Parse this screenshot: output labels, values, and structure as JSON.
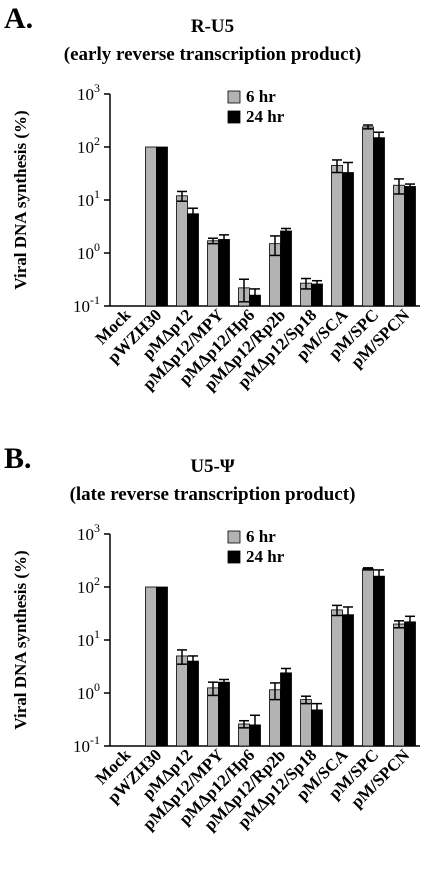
{
  "chart_data": [
    {
      "type": "bar",
      "panel_label": "A.",
      "title": "R-U5",
      "subtitle": "(early reverse transcription product)",
      "ylabel": "Viral DNA synthesis (%)",
      "xlabel": "",
      "y_scale": "log",
      "ylim": [
        0.1,
        1000
      ],
      "y_ticks": [
        {
          "base": "10",
          "exp": "3",
          "value": 1000
        },
        {
          "base": "10",
          "exp": "2",
          "value": 100
        },
        {
          "base": "10",
          "exp": "1",
          "value": 10
        },
        {
          "base": "10",
          "exp": "0",
          "value": 1
        },
        {
          "base": "10",
          "exp": "-1",
          "value": 0.1
        }
      ],
      "grid": false,
      "legend_position": "top-center",
      "categories": [
        "Mock",
        "pWZH30",
        "pMΔp12",
        "pMΔp12/MPY",
        "pMΔp12/Hp6",
        "pMΔp12/Rp2b",
        "pMΔp12/Sp18",
        "pM/SCA",
        "pM/SPC",
        "pM/SPCN"
      ],
      "series": [
        {
          "name": "6 hr",
          "color": "#b3b3b3",
          "values": [
            null,
            100,
            12,
            1.7,
            0.22,
            1.5,
            0.27,
            45,
            240,
            19
          ],
          "errors": [
            null,
            0,
            2.5,
            0.2,
            0.1,
            0.6,
            0.06,
            12,
            20,
            6
          ]
        },
        {
          "name": "24 hr",
          "color": "#000000",
          "values": [
            null,
            100,
            5.5,
            1.8,
            0.16,
            2.6,
            0.26,
            33,
            150,
            18
          ],
          "errors": [
            null,
            0,
            1.5,
            0.4,
            0.05,
            0.3,
            0.04,
            18,
            40,
            2
          ]
        }
      ]
    },
    {
      "type": "bar",
      "panel_label": "B.",
      "title": "U5-Ψ",
      "subtitle": "(late reverse transcription product)",
      "ylabel": "Viral DNA synthesis (%)",
      "xlabel": "",
      "y_scale": "log",
      "ylim": [
        0.1,
        1000
      ],
      "y_ticks": [
        {
          "base": "10",
          "exp": "3",
          "value": 1000
        },
        {
          "base": "10",
          "exp": "2",
          "value": 100
        },
        {
          "base": "10",
          "exp": "1",
          "value": 10
        },
        {
          "base": "10",
          "exp": "0",
          "value": 1
        },
        {
          "base": "10",
          "exp": "-1",
          "value": 0.1
        }
      ],
      "grid": false,
      "legend_position": "top-center",
      "categories": [
        "Mock",
        "pWZH30",
        "pMΔp12",
        "pMΔp12/MPY",
        "pMΔp12/Hp6",
        "pMΔp12/Rp2b",
        "pMΔp12/Sp18",
        "pM/SCA",
        "pM/SPC",
        "pM/SPCN"
      ],
      "series": [
        {
          "name": "6 hr",
          "color": "#b3b3b3",
          "values": [
            null,
            100,
            5,
            1.25,
            0.26,
            1.15,
            0.75,
            37,
            220,
            20
          ],
          "errors": [
            null,
            0,
            1.5,
            0.35,
            0.04,
            0.4,
            0.12,
            8,
            10,
            3
          ]
        },
        {
          "name": "24 hr",
          "color": "#000000",
          "values": [
            null,
            100,
            4,
            1.6,
            0.25,
            2.4,
            0.48,
            30,
            160,
            22
          ],
          "errors": [
            null,
            0,
            1,
            0.2,
            0.13,
            0.5,
            0.15,
            12,
            50,
            6
          ]
        }
      ]
    }
  ]
}
